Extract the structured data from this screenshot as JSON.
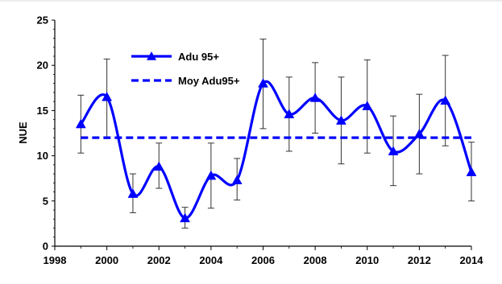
{
  "chart_data": {
    "type": "line",
    "ylabel": "NUE",
    "xlabel": "",
    "xlim": [
      1998,
      2014
    ],
    "ylim": [
      0,
      25
    ],
    "x_ticks": [
      1998,
      2000,
      2002,
      2004,
      2006,
      2008,
      2010,
      2012,
      2014
    ],
    "y_ticks": [
      0,
      5,
      10,
      15,
      20,
      25
    ],
    "grid": false,
    "legend_position": "top-left",
    "series": [
      {
        "name": "Adu 95+",
        "style": "smoothed line with triangle markers and error bars",
        "color": "#0000ff",
        "x": [
          1999,
          2000,
          2001,
          2002,
          2003,
          2004,
          2005,
          2006,
          2007,
          2008,
          2009,
          2010,
          2011,
          2012,
          2013,
          2014
        ],
        "values": [
          13.5,
          16.5,
          5.8,
          8.8,
          3.1,
          7.8,
          7.3,
          18.0,
          14.6,
          16.4,
          13.9,
          15.5,
          10.5,
          12.4,
          16.1,
          8.2
        ],
        "error_high": [
          16.7,
          20.7,
          8.0,
          11.4,
          4.3,
          11.4,
          9.7,
          22.9,
          18.7,
          20.3,
          18.7,
          20.6,
          14.4,
          16.8,
          21.1,
          11.5
        ],
        "error_low": [
          10.3,
          11.9,
          3.7,
          6.4,
          2.0,
          4.2,
          5.1,
          13.0,
          10.5,
          12.5,
          9.1,
          10.3,
          6.7,
          8.0,
          11.1,
          5.0
        ]
      },
      {
        "name": "Moy Adu95+",
        "style": "dashed",
        "color": "#0000ff",
        "x": [
          1999,
          2014
        ],
        "values": [
          12.0,
          12.0
        ]
      }
    ]
  }
}
